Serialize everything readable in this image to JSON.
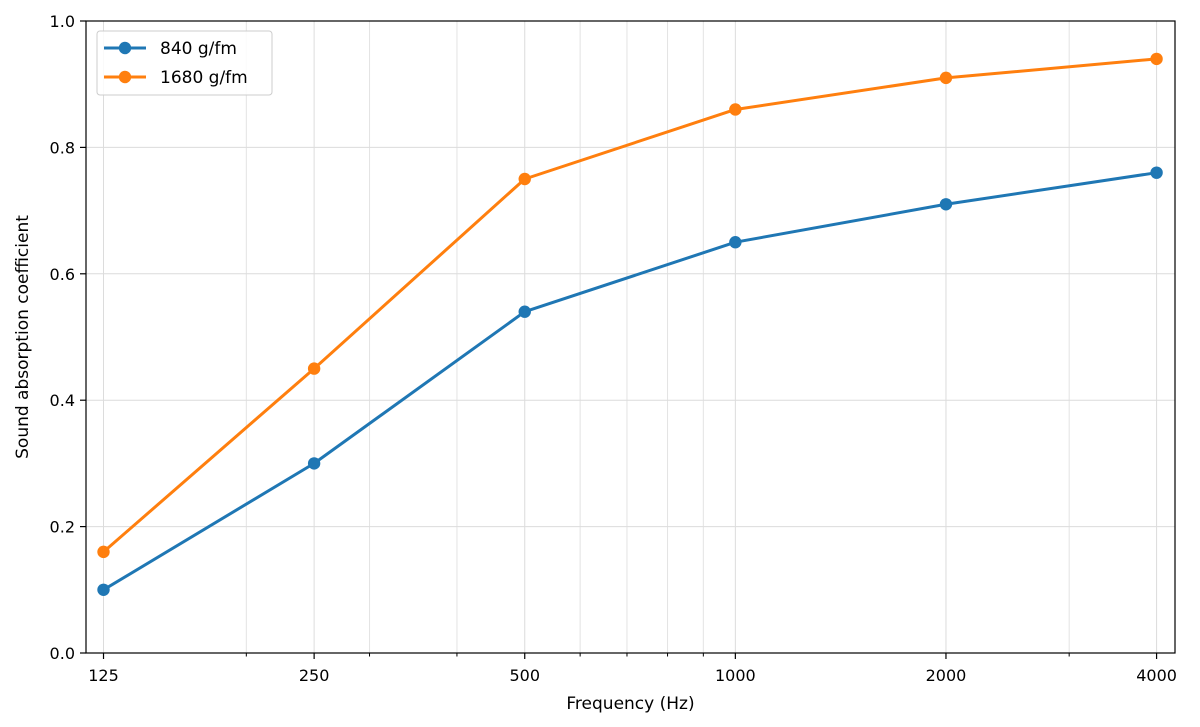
{
  "chart_data": {
    "type": "line",
    "title": "",
    "xlabel": "Frequency (Hz)",
    "ylabel": "Sound absorption coefficient",
    "x": [
      125,
      250,
      500,
      1000,
      2000,
      4000
    ],
    "x_tick_labels": [
      "125",
      "250",
      "500",
      "1000",
      "2000",
      "4000"
    ],
    "x_scale": "log",
    "y_ticks": [
      0.0,
      0.2,
      0.4,
      0.6,
      0.8,
      1.0
    ],
    "y_tick_labels": [
      "0.0",
      "0.2",
      "0.4",
      "0.6",
      "0.8",
      "1.0"
    ],
    "ylim": [
      0.0,
      1.0
    ],
    "grid": true,
    "legend_position": "top-left",
    "series": [
      {
        "name": "840 g/fm",
        "color": "#1f77b4",
        "values": [
          0.1,
          0.3,
          0.54,
          0.65,
          0.71,
          0.76
        ]
      },
      {
        "name": "1680 g/fm",
        "color": "#ff7f0e",
        "values": [
          0.16,
          0.45,
          0.75,
          0.86,
          0.91,
          0.94
        ]
      }
    ]
  }
}
